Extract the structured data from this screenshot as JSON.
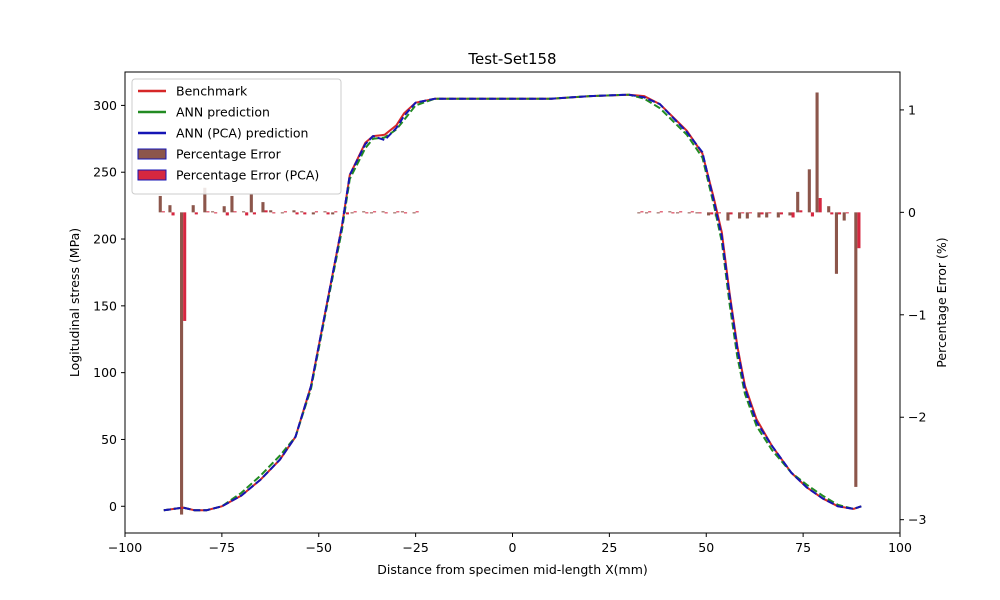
{
  "chart_data": {
    "type": "line",
    "title": "Test-Set158",
    "xlabel": "Distance from specimen mid-length X(mm)",
    "ylabel": "Logitudinal stress (MPa)",
    "y2label": "Percentage Error (%)",
    "xlim": [
      -100,
      100
    ],
    "ylim": [
      -20,
      325
    ],
    "y2lim": [
      -3.13,
      1.37
    ],
    "xticks": [
      "−100",
      "−75",
      "−50",
      "−25",
      "0",
      "25",
      "50",
      "75",
      "100"
    ],
    "xtick_values": [
      -100,
      -75,
      -50,
      -25,
      0,
      25,
      50,
      75,
      100
    ],
    "yticks": [
      "0",
      "50",
      "100",
      "150",
      "200",
      "250",
      "300"
    ],
    "ytick_values": [
      0,
      50,
      100,
      150,
      200,
      250,
      300
    ],
    "y2ticks": [
      "−3",
      "−2",
      "−1",
      "0",
      "1"
    ],
    "y2tick_values": [
      -3,
      -2,
      -1,
      0,
      1
    ],
    "grid": false,
    "legend_position": "top-left",
    "legend": [
      {
        "label": "Benchmark",
        "kind": "line",
        "color": "#d62728"
      },
      {
        "label": "ANN prediction",
        "kind": "line",
        "color": "#228b22"
      },
      {
        "label": "ANN (PCA) prediction",
        "kind": "line",
        "color": "#1515b5"
      },
      {
        "label": "Percentage Error",
        "kind": "patch",
        "color": "#8c564b",
        "edge": "#1515b5"
      },
      {
        "label": "Percentage Error (PCA)",
        "kind": "patch",
        "color": "#d62740",
        "edge": "#1515b5"
      }
    ],
    "series": [
      {
        "name": "Benchmark",
        "color": "#d62728",
        "dash": "solid",
        "points": [
          [
            -90,
            -3
          ],
          [
            -85,
            -1
          ],
          [
            -82,
            -3
          ],
          [
            -79,
            -3
          ],
          [
            -75,
            0
          ],
          [
            -70,
            8
          ],
          [
            -65,
            20
          ],
          [
            -60,
            35
          ],
          [
            -56,
            52
          ],
          [
            -52,
            90
          ],
          [
            -48,
            150
          ],
          [
            -44,
            210
          ],
          [
            -42,
            248
          ],
          [
            -38,
            272
          ],
          [
            -36,
            277
          ],
          [
            -33,
            278
          ],
          [
            -30,
            285
          ],
          [
            -28,
            294
          ],
          [
            -25,
            302
          ],
          [
            -20,
            305
          ],
          [
            -15,
            305
          ],
          [
            -10,
            305
          ],
          [
            0,
            305
          ],
          [
            10,
            305
          ],
          [
            20,
            307
          ],
          [
            30,
            308
          ],
          [
            34,
            307
          ],
          [
            38,
            301
          ],
          [
            45,
            281
          ],
          [
            49,
            264
          ],
          [
            52,
            230
          ],
          [
            54,
            205
          ],
          [
            56,
            160
          ],
          [
            58,
            120
          ],
          [
            60,
            90
          ],
          [
            63,
            65
          ],
          [
            67,
            45
          ],
          [
            72,
            25
          ],
          [
            76,
            14
          ],
          [
            80,
            6
          ],
          [
            84,
            0
          ],
          [
            88,
            -2
          ],
          [
            90,
            0
          ]
        ]
      },
      {
        "name": "ANN prediction",
        "color": "#228b22",
        "dash": "dashed",
        "points": [
          [
            -90,
            -3
          ],
          [
            -85,
            -1
          ],
          [
            -82,
            -3
          ],
          [
            -79,
            -3
          ],
          [
            -75,
            0
          ],
          [
            -70,
            10
          ],
          [
            -65,
            23
          ],
          [
            -60,
            38
          ],
          [
            -56,
            52
          ],
          [
            -52,
            88
          ],
          [
            -48,
            148
          ],
          [
            -44,
            207
          ],
          [
            -42,
            245
          ],
          [
            -38,
            268
          ],
          [
            -36,
            275
          ],
          [
            -33,
            276
          ],
          [
            -30,
            282
          ],
          [
            -28,
            289
          ],
          [
            -25,
            300
          ],
          [
            -20,
            305
          ],
          [
            -15,
            305
          ],
          [
            -10,
            305
          ],
          [
            0,
            305
          ],
          [
            10,
            305
          ],
          [
            20,
            307
          ],
          [
            30,
            308
          ],
          [
            34,
            305
          ],
          [
            38,
            298
          ],
          [
            45,
            278
          ],
          [
            49,
            261
          ],
          [
            52,
            225
          ],
          [
            54,
            198
          ],
          [
            56,
            152
          ],
          [
            58,
            112
          ],
          [
            60,
            84
          ],
          [
            63,
            60
          ],
          [
            67,
            42
          ],
          [
            72,
            25
          ],
          [
            76,
            16
          ],
          [
            80,
            8
          ],
          [
            84,
            1
          ],
          [
            88,
            -2
          ],
          [
            90,
            0
          ]
        ]
      },
      {
        "name": "ANN (PCA) prediction",
        "color": "#1515b5",
        "dash": "dashed",
        "points": [
          [
            -90,
            -3
          ],
          [
            -85,
            -1
          ],
          [
            -82,
            -3
          ],
          [
            -79,
            -3
          ],
          [
            -75,
            0
          ],
          [
            -70,
            8
          ],
          [
            -65,
            20
          ],
          [
            -60,
            35
          ],
          [
            -56,
            52
          ],
          [
            -52,
            90
          ],
          [
            -48,
            150
          ],
          [
            -44,
            210
          ],
          [
            -42,
            248
          ],
          [
            -38,
            271
          ],
          [
            -36,
            277
          ],
          [
            -33,
            274
          ],
          [
            -30,
            283
          ],
          [
            -28,
            292
          ],
          [
            -25,
            302
          ],
          [
            -20,
            305
          ],
          [
            -15,
            305
          ],
          [
            -10,
            305
          ],
          [
            0,
            305
          ],
          [
            10,
            305
          ],
          [
            20,
            307
          ],
          [
            30,
            308
          ],
          [
            34,
            306
          ],
          [
            38,
            301
          ],
          [
            45,
            280
          ],
          [
            49,
            265
          ],
          [
            52,
            228
          ],
          [
            54,
            202
          ],
          [
            56,
            158
          ],
          [
            58,
            118
          ],
          [
            60,
            88
          ],
          [
            63,
            63
          ],
          [
            67,
            45
          ],
          [
            72,
            25
          ],
          [
            76,
            14
          ],
          [
            80,
            6
          ],
          [
            84,
            0
          ],
          [
            88,
            -2
          ],
          [
            90,
            0
          ]
        ]
      }
    ],
    "error_bars": {
      "bar_width_mm": 0.8,
      "x": [
        -90.5,
        -88,
        -85,
        -82,
        -79,
        -77,
        -74,
        -72,
        -69,
        -67,
        -64,
        -62,
        -59,
        -56,
        -54,
        -51,
        -48,
        -46,
        -43,
        -41,
        -38,
        -36,
        -33,
        -30,
        -28,
        -25,
        33,
        35,
        38,
        41,
        43,
        46,
        48,
        51,
        53,
        56,
        59,
        61,
        64,
        66,
        69,
        72,
        74,
        77,
        79,
        82,
        84,
        86,
        89
      ],
      "percentage_error": [
        0.16,
        0.07,
        -2.95,
        0.07,
        0.24,
        0.01,
        0.06,
        0.16,
        0.01,
        0.18,
        0.1,
        0.02,
        -0.01,
        0.02,
        0.01,
        -0.02,
        0.01,
        -0.02,
        0.01,
        -0.01,
        0.01,
        -0.01,
        0.01,
        -0.01,
        0.01,
        -0.01,
        -0.01,
        -0.01,
        -0.01,
        0.01,
        -0.01,
        -0.01,
        -0.01,
        -0.03,
        -0.04,
        -0.08,
        -0.06,
        -0.06,
        -0.05,
        -0.05,
        -0.05,
        -0.03,
        0.2,
        0.42,
        1.17,
        0.06,
        -0.6,
        -0.08,
        -2.68
      ],
      "percentage_error_pca": [
        0.01,
        -0.03,
        -1.06,
        -0.02,
        0.01,
        -0.01,
        -0.03,
        0.01,
        -0.03,
        -0.02,
        0.02,
        -0.01,
        0.01,
        -0.02,
        -0.02,
        0.01,
        -0.02,
        0.01,
        -0.02,
        0.01,
        -0.01,
        0.01,
        -0.01,
        0.01,
        -0.01,
        0.01,
        0.01,
        0.01,
        0.01,
        -0.01,
        0.01,
        0.01,
        -0.01,
        -0.02,
        -0.01,
        -0.02,
        -0.01,
        -0.01,
        -0.02,
        -0.01,
        -0.02,
        -0.05,
        0.02,
        -0.04,
        0.14,
        -0.02,
        -0.02,
        -0.01,
        -0.35
      ]
    }
  }
}
